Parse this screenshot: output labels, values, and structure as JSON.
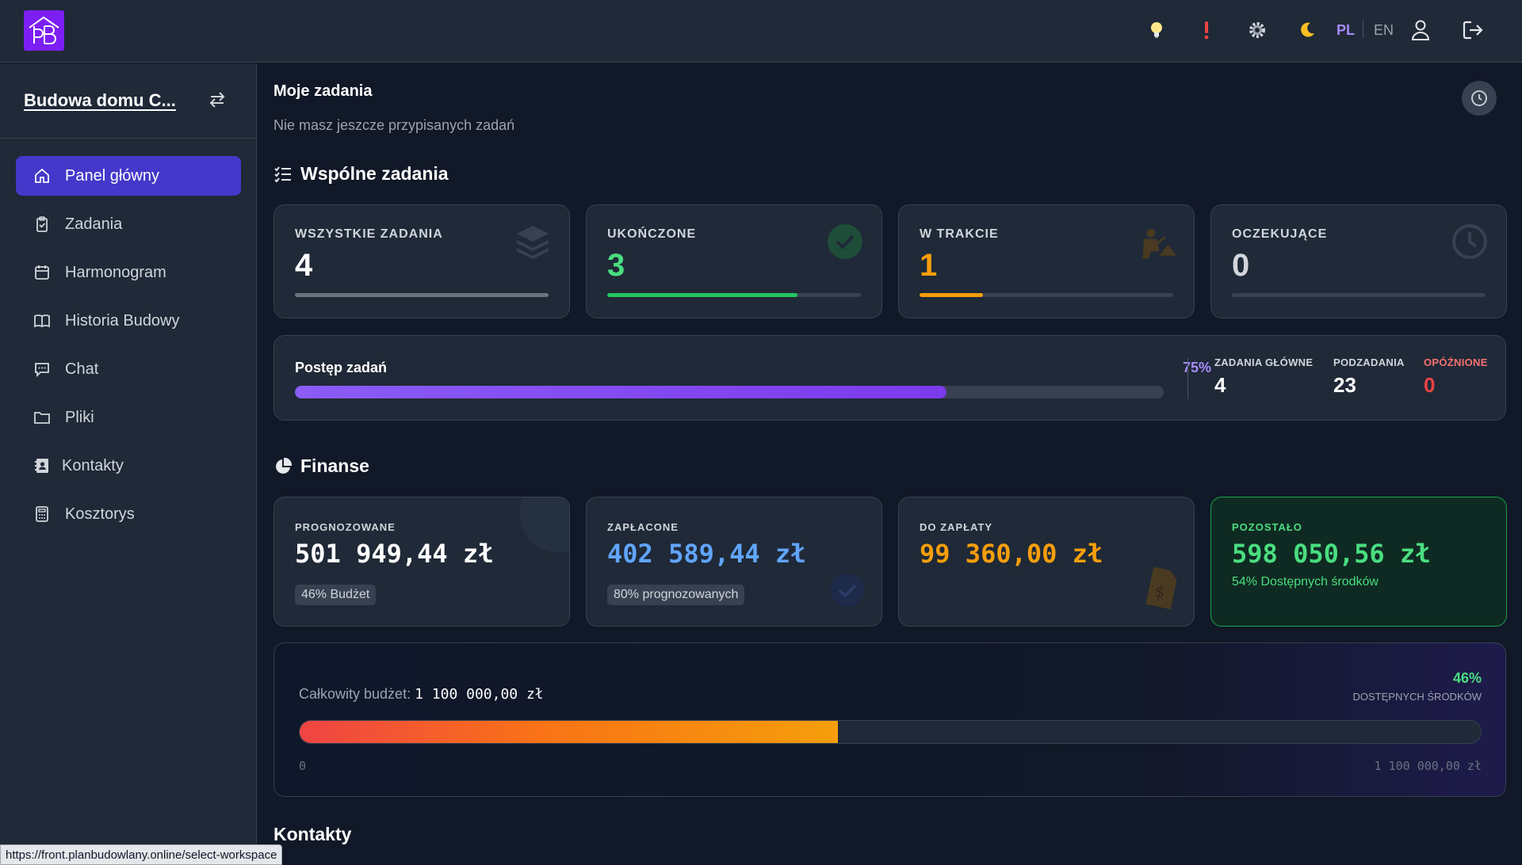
{
  "topbar": {
    "logo_icon": "pb-house-logo",
    "icons": [
      "lightbulb-icon",
      "alert-icon",
      "gear-icon",
      "moon-icon"
    ],
    "lang_pl": "PL",
    "lang_en": "EN",
    "user_icon": "user-icon",
    "logout_icon": "logout-icon"
  },
  "sidebar": {
    "workspace_title": "Budowa domu C...",
    "items": [
      {
        "label": "Panel główny",
        "icon": "home-icon",
        "active": true
      },
      {
        "label": "Zadania",
        "icon": "clipboard-check-icon"
      },
      {
        "label": "Harmonogram",
        "icon": "calendar-icon"
      },
      {
        "label": "Historia Budowy",
        "icon": "book-open-icon"
      },
      {
        "label": "Chat",
        "icon": "chat-icon"
      },
      {
        "label": "Pliki",
        "icon": "folder-icon"
      },
      {
        "label": "Kontakty",
        "icon": "contact-book-icon"
      },
      {
        "label": "Kosztorys",
        "icon": "calculator-icon"
      }
    ]
  },
  "my_tasks": {
    "title": "Moje zadania",
    "empty_text": "Nie masz jeszcze przypisanych zadań"
  },
  "shared_tasks": {
    "title": "Wspólne zadania",
    "stats": [
      {
        "label": "WSZYSTKIE ZADANIA",
        "value": "4",
        "color": "#ffffff",
        "bar_color": "#6b7280",
        "fill": 1.0,
        "icon": "layers-icon"
      },
      {
        "label": "UKOŃCZONE",
        "value": "3",
        "color": "#4ade80",
        "bar_color": "#22c55e",
        "fill": 0.75,
        "icon": "check-circle-icon"
      },
      {
        "label": "W TRAKCIE",
        "value": "1",
        "color": "#f59e0b",
        "bar_color": "#f59e0b",
        "fill": 0.25,
        "icon": "worker-icon"
      },
      {
        "label": "OCZEKUJĄCE",
        "value": "0",
        "color": "#d1d5db",
        "bar_color": "#6b7280",
        "fill": 0.0,
        "icon": "clock-icon"
      }
    ],
    "progress": {
      "label": "Postęp zadań",
      "percent_text": "75%",
      "percent": 0.75,
      "main_tasks_label": "ZADANIA GŁÓWNE",
      "main_tasks_value": "4",
      "subtasks_label": "PODZADANIA",
      "subtasks_value": "23",
      "delayed_label": "OPÓŹNIONE",
      "delayed_value": "0"
    }
  },
  "finance": {
    "title": "Finanse",
    "cards": [
      {
        "label": "PROGNOZOWANE",
        "value": "501 949,44 zł",
        "badge": "46% Budżet",
        "value_color": "#ffffff"
      },
      {
        "label": "ZAPŁACONE",
        "value": "402 589,44 zł",
        "badge": "80% prognozowanych",
        "value_color": "#60a5fa"
      },
      {
        "label": "DO ZAPŁATY",
        "value": "99 360,00 zł",
        "value_color": "#f59e0b"
      },
      {
        "label": "POZOSTAŁO",
        "value": "598 050,56 zł",
        "note": "54% Dostępnych środków",
        "value_color": "#4ade80"
      }
    ],
    "budget": {
      "label": "Całkowity budżet:",
      "total": "1 100 000,00 zł",
      "percent_text": "46%",
      "percent_label": "DOSTĘPNYCH ŚRODKÓW",
      "fill": 0.456,
      "min": "0",
      "max": "1 100 000,00 zł"
    }
  },
  "contacts": {
    "title": "Kontakty"
  },
  "status_bar": {
    "url": "https://front.planbudowlany.online/select-workspace"
  }
}
